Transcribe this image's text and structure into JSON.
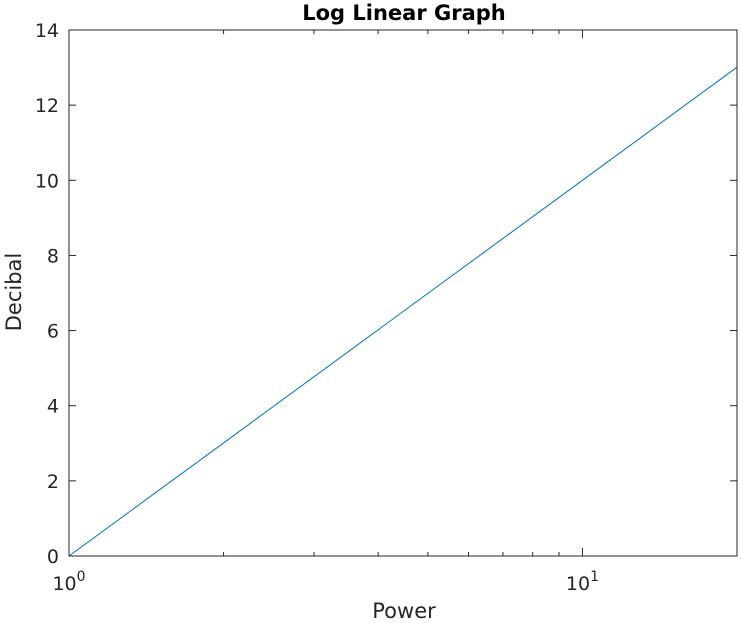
{
  "chart_data": {
    "type": "line",
    "title": "Log Linear Graph",
    "xlabel": "Power",
    "ylabel": "Decibal",
    "xscale": "log",
    "xlim": [
      1,
      20
    ],
    "ylim": [
      0,
      14
    ],
    "grid": false,
    "legend": "none",
    "line_color": "#0072BD",
    "x_ticks": [
      {
        "base": "10",
        "exp": "0"
      },
      {
        "base": "10",
        "exp": "1"
      }
    ],
    "y_ticks": [
      "0",
      "2",
      "4",
      "6",
      "8",
      "10",
      "12",
      "14"
    ],
    "series": [
      {
        "x": [
          1,
          2,
          5,
          10,
          20
        ],
        "y": [
          0,
          3.01,
          6.99,
          10,
          13.01
        ]
      }
    ]
  }
}
